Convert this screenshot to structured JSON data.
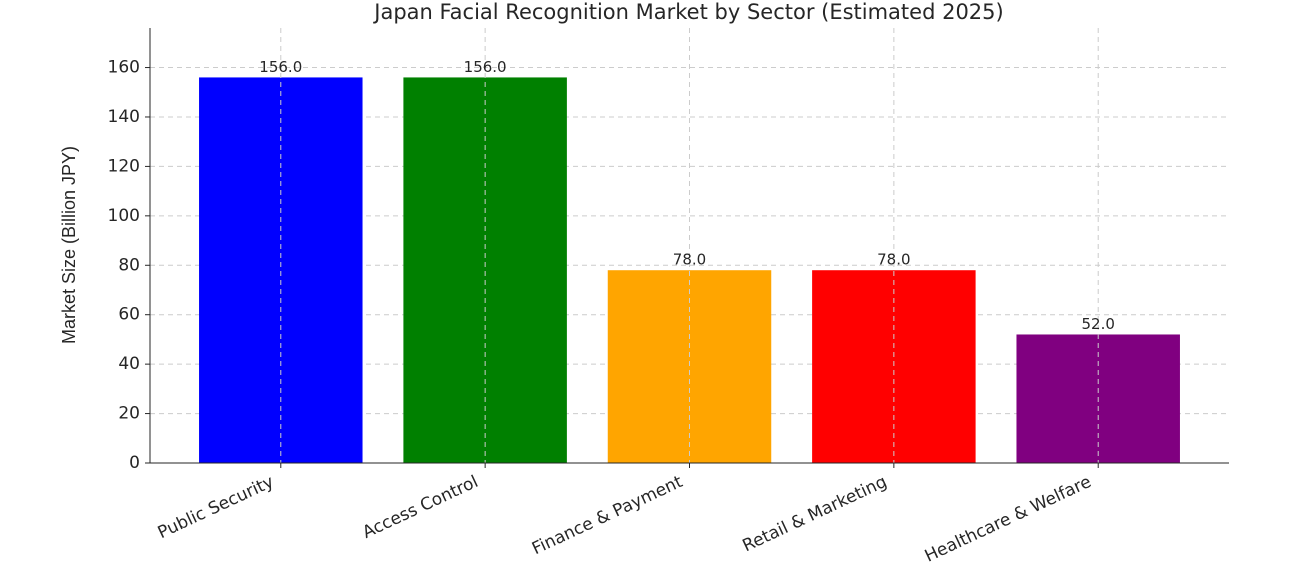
{
  "chart_data": {
    "type": "bar",
    "title": "Japan Facial Recognition Market by Sector (Estimated 2025)",
    "y_label": "Market Size (Billion JPY)",
    "categories": [
      "Public Security",
      "Access Control",
      "Finance & Payment",
      "Retail & Marketing",
      "Healthcare & Welfare"
    ],
    "values": [
      156,
      156,
      78,
      78,
      52
    ],
    "value_labels": [
      "156.0",
      "156.0",
      "78.0",
      "78.0",
      "52.0"
    ],
    "colors": [
      "#0000ff",
      "#008000",
      "#ffa500",
      "#ff0000",
      "#800080"
    ],
    "ylim": [
      0,
      176
    ],
    "yticks": [
      0,
      20,
      40,
      60,
      80,
      100,
      120,
      140,
      160
    ],
    "grid": true
  }
}
